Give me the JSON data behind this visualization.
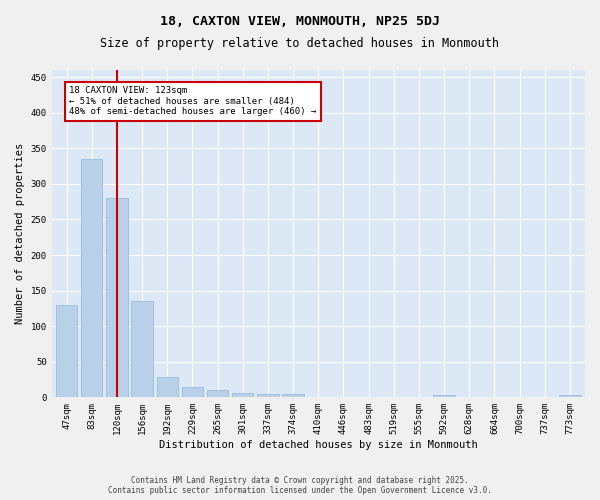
{
  "title": "18, CAXTON VIEW, MONMOUTH, NP25 5DJ",
  "subtitle": "Size of property relative to detached houses in Monmouth",
  "xlabel": "Distribution of detached houses by size in Monmouth",
  "ylabel": "Number of detached properties",
  "categories": [
    "47sqm",
    "83sqm",
    "120sqm",
    "156sqm",
    "192sqm",
    "229sqm",
    "265sqm",
    "301sqm",
    "337sqm",
    "374sqm",
    "410sqm",
    "446sqm",
    "483sqm",
    "519sqm",
    "555sqm",
    "592sqm",
    "628sqm",
    "664sqm",
    "700sqm",
    "737sqm",
    "773sqm"
  ],
  "values": [
    130,
    335,
    280,
    135,
    28,
    14,
    10,
    6,
    5,
    4,
    1,
    0,
    0,
    0,
    0,
    3,
    0,
    0,
    0,
    0,
    3
  ],
  "bar_color": "#b8d0e8",
  "bar_edgecolor": "#90b8d8",
  "redline_index": 2,
  "redline_label": "18 CAXTON VIEW: 123sqm",
  "annotation_line2": "← 51% of detached houses are smaller (484)",
  "annotation_line3": "48% of semi-detached houses are larger (460) →",
  "annotation_box_color": "#ffffff",
  "annotation_box_edgecolor": "#cc0000",
  "redline_color": "#cc0000",
  "ylim": [
    0,
    460
  ],
  "yticks": [
    0,
    50,
    100,
    150,
    200,
    250,
    300,
    350,
    400,
    450
  ],
  "bg_color": "#dce8f5",
  "grid_color": "#ffffff",
  "title_fontsize": 9.5,
  "subtitle_fontsize": 8.5,
  "axis_label_fontsize": 7.5,
  "tick_fontsize": 6.5,
  "annotation_fontsize": 6.5,
  "footer_fontsize": 5.5,
  "footer_line1": "Contains HM Land Registry data © Crown copyright and database right 2025.",
  "footer_line2": "Contains public sector information licensed under the Open Government Licence v3.0."
}
